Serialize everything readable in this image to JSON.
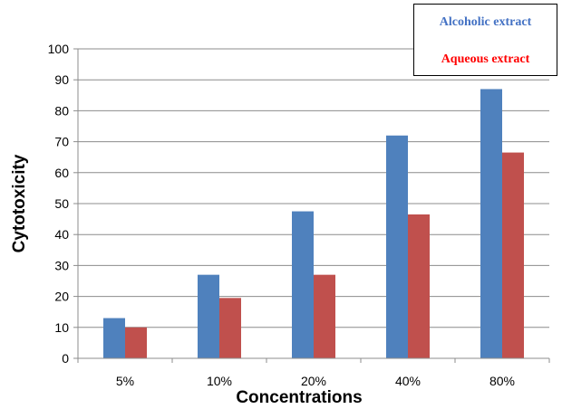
{
  "chart_data": {
    "type": "bar",
    "categories": [
      "5%",
      "10%",
      "20%",
      "40%",
      "80%"
    ],
    "series": [
      {
        "name": "Alcoholic extract",
        "values": [
          13,
          27,
          47.5,
          72,
          87
        ],
        "color": "#4f81bd"
      },
      {
        "name": "Aqueous extract",
        "values": [
          10,
          19.5,
          27,
          46.5,
          66.5
        ],
        "color": "#c0504d"
      }
    ],
    "xlabel": "Concentrations",
    "ylabel": "Cytotoxicity",
    "ylim": [
      0,
      100
    ],
    "yticks": [
      "0",
      "10",
      "20",
      "30",
      "40",
      "50",
      "60",
      "70",
      "80",
      "90",
      "100"
    ],
    "grid": true,
    "legend": {
      "placement": "top-right",
      "text_colors": [
        "#4472c4",
        "#ff0000"
      ]
    }
  }
}
